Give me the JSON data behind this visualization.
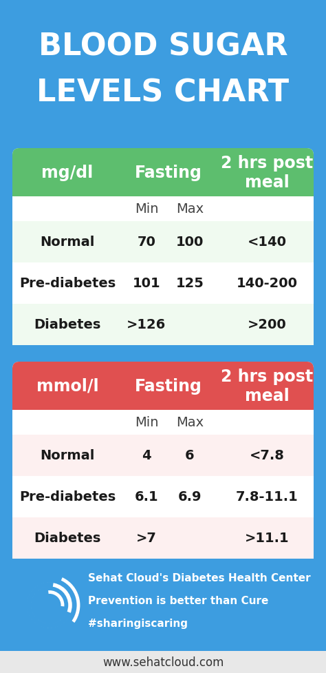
{
  "title_line1": "BLOOD SUGAR",
  "title_line2": "LEVELS CHART",
  "bg_color": "#3d9de0",
  "title_color": "#ffffff",
  "table1_header_bg": "#5dbe6e",
  "table2_header_bg": "#e05050",
  "table1_body_bg": "#f0faf0",
  "table2_body_bg": "#fdf0f0",
  "table_row_alt": "#ffffff",
  "table1": {
    "unit": "mg/dl",
    "col2": "Fasting",
    "col3": "2 hrs post\nmeal",
    "rows": [
      [
        "Normal",
        "70",
        "100",
        "<140"
      ],
      [
        "Pre-diabetes",
        "101",
        "125",
        "140-200"
      ],
      [
        "Diabetes",
        ">126",
        "",
        ">200"
      ]
    ]
  },
  "table2": {
    "unit": "mmol/l",
    "col2": "Fasting",
    "col3": "2 hrs post\nmeal",
    "rows": [
      [
        "Normal",
        "4",
        "6",
        "<7.8"
      ],
      [
        "Pre-diabetes",
        "6.1",
        "6.9",
        "7.8-11.1"
      ],
      [
        "Diabetes",
        ">7",
        "",
        ">11.1"
      ]
    ]
  },
  "footer_text1": "Sehat Cloud's Diabetes Health Center",
  "footer_text2": "Prevention is better than Cure",
  "footer_text3": "#sharingiscaring",
  "footer_url": "www.sehatcloud.com",
  "footer_bg": "#3d9de0",
  "footer_url_bg": "#e8e8e8"
}
